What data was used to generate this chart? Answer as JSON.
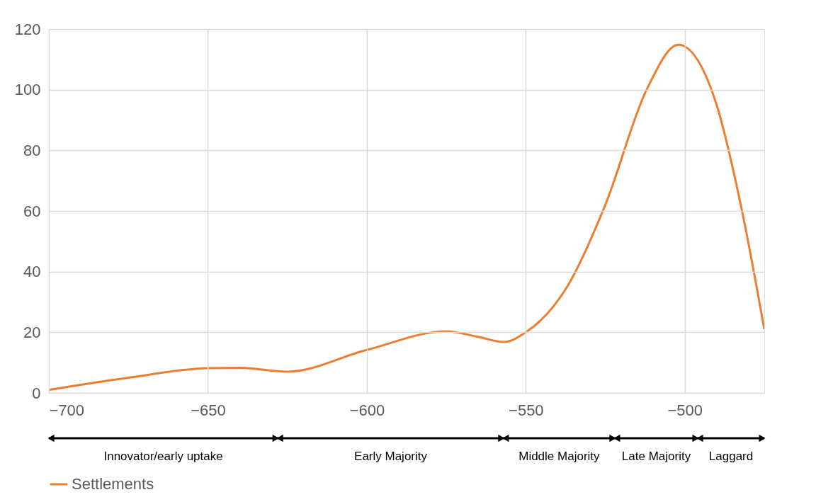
{
  "chart_data": {
    "type": "line",
    "x": [
      -700,
      -675,
      -650,
      -640,
      -625,
      -600,
      -575,
      -565,
      -557,
      -550,
      -537,
      -525,
      -512,
      -502,
      -490,
      -482,
      -475
    ],
    "series": [
      {
        "name": "Settlements",
        "color": "#ed7d31",
        "values": [
          1,
          5,
          8.2,
          8.3,
          7,
          14.2,
          20.3,
          18.5,
          16.8,
          20,
          35,
          62,
          100,
          114.8,
          95,
          60,
          21
        ]
      }
    ],
    "xlim": [
      -700,
      -475
    ],
    "xticks": [
      -700,
      -650,
      -600,
      -550,
      -500
    ],
    "ylim": [
      0,
      120
    ],
    "yticks": [
      0,
      20,
      40,
      60,
      80,
      100,
      120
    ],
    "grid": true,
    "legend": "bottom",
    "marker": "none",
    "line_style": "solid",
    "annotations": [
      "Innovator/early uptake",
      "Early Majority",
      "Middle Majority",
      "Late Majority",
      "Laggard"
    ]
  }
}
